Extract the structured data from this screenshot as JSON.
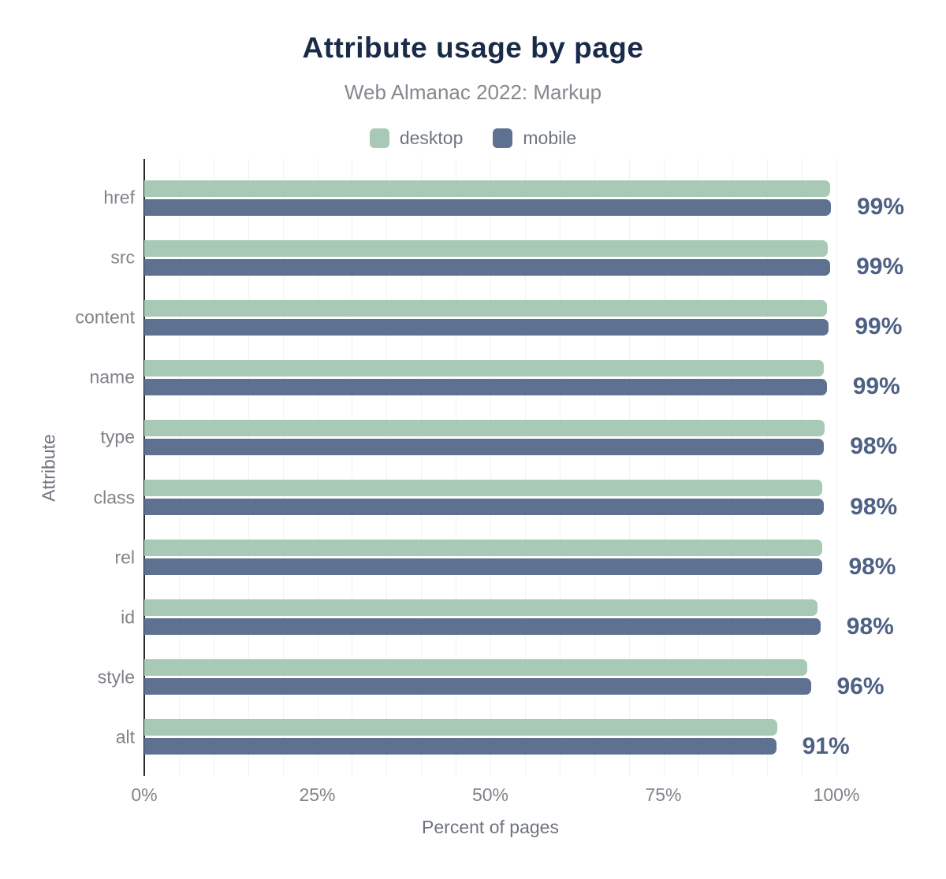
{
  "title": "Attribute usage by page",
  "subtitle": "Web Almanac 2022: Markup",
  "legend": {
    "items": [
      {
        "label": "desktop",
        "color": "#a8c9b6"
      },
      {
        "label": "mobile",
        "color": "#5e7190"
      }
    ]
  },
  "chart_data": {
    "type": "bar",
    "orientation": "horizontal",
    "title": "Attribute usage by page",
    "subtitle": "Web Almanac 2022: Markup",
    "xlabel": "Percent of pages",
    "ylabel": "Attribute",
    "xlim": [
      0,
      100
    ],
    "grid_minor_step": 5,
    "grid": true,
    "legend_position": "top",
    "categories": [
      "href",
      "src",
      "content",
      "name",
      "type",
      "class",
      "rel",
      "id",
      "style",
      "alt"
    ],
    "series": [
      {
        "name": "desktop",
        "color": "#a8c9b6",
        "values": [
          99.1,
          98.8,
          98.6,
          98.2,
          98.3,
          98.0,
          97.9,
          97.3,
          95.8,
          91.5
        ]
      },
      {
        "name": "mobile",
        "color": "#5e7190",
        "values": [
          99.2,
          99.1,
          98.9,
          98.6,
          98.2,
          98.2,
          98.0,
          97.7,
          96.3,
          91.3
        ]
      }
    ],
    "value_labels": [
      "99%",
      "99%",
      "99%",
      "99%",
      "98%",
      "98%",
      "98%",
      "98%",
      "96%",
      "91%"
    ],
    "x_ticks": [
      {
        "label": "0%",
        "value": 0
      },
      {
        "label": "25%",
        "value": 25
      },
      {
        "label": "50%",
        "value": 50
      },
      {
        "label": "75%",
        "value": 75
      },
      {
        "label": "100%",
        "value": 100
      }
    ]
  },
  "colors": {
    "background": "#ffffff",
    "title": "#1a2b49",
    "subtitle": "#85898f",
    "desktop_bar": "#a8c9b6",
    "mobile_bar": "#5e7190",
    "value_label": "#4e6185",
    "axis_tick_label": "#7f8389",
    "axis_title": "#6e747e",
    "axis_line": "#26292f",
    "gridline": "#f2f2f4"
  }
}
